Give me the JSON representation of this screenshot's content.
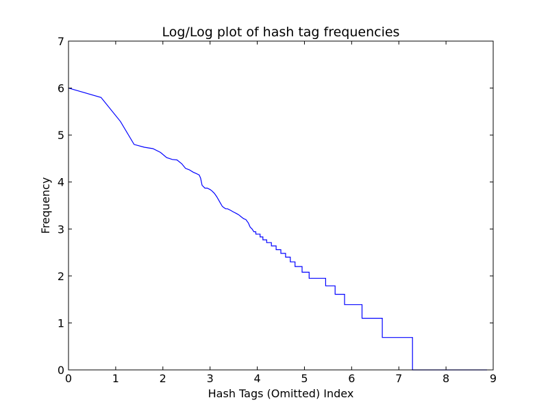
{
  "chart_data": {
    "type": "line",
    "title": "Log/Log plot of hash tag frequencies",
    "xlabel": "Hash Tags (Omitted) Index",
    "ylabel": "Frequency",
    "xlim": [
      0,
      9
    ],
    "ylim": [
      0,
      7
    ],
    "x_ticks": [
      "0",
      "1",
      "2",
      "3",
      "4",
      "5",
      "6",
      "7",
      "8",
      "9"
    ],
    "y_ticks": [
      "0",
      "1",
      "2",
      "3",
      "4",
      "5",
      "6",
      "7"
    ],
    "grid": false,
    "legend": "none",
    "series": [
      {
        "color": "#0000ff",
        "x": [
          0,
          0.69,
          1.1,
          1.39,
          1.61,
          1.79,
          1.95,
          2.08,
          2.2,
          2.3,
          2.4,
          2.48,
          2.56,
          2.64,
          2.71,
          2.77,
          2.8,
          2.83,
          2.89,
          2.94,
          3.0,
          3.04,
          3.09,
          3.14,
          3.18,
          3.22,
          3.26,
          3.3,
          3.33,
          3.37,
          3.43,
          3.5,
          3.56,
          3.61,
          3.66,
          3.71,
          3.76,
          3.81,
          3.85,
          3.89,
          3.93,
          3.97,
          4.0,
          4.06,
          4.12,
          4.2,
          4.3,
          4.4,
          4.5,
          4.6,
          4.7,
          4.8,
          4.95,
          5.1,
          5.2,
          5.45,
          5.65,
          5.85,
          6.22,
          6.65,
          7.29,
          8.87
        ],
        "y": [
          6.0,
          5.8,
          5.29,
          4.8,
          4.74,
          4.71,
          4.63,
          4.52,
          4.48,
          4.47,
          4.39,
          4.29,
          4.26,
          4.21,
          4.18,
          4.15,
          4.08,
          3.93,
          3.87,
          3.87,
          3.84,
          3.81,
          3.76,
          3.69,
          3.62,
          3.55,
          3.48,
          3.45,
          3.43,
          3.43,
          3.4,
          3.36,
          3.33,
          3.3,
          3.26,
          3.22,
          3.2,
          3.13,
          3.04,
          3.0,
          2.94,
          2.89,
          2.89,
          2.83,
          2.77,
          2.71,
          2.64,
          2.56,
          2.48,
          2.4,
          2.3,
          2.2,
          2.08,
          1.95,
          1.95,
          1.79,
          1.61,
          1.39,
          1.1,
          0.69,
          0.0,
          0.0
        ],
        "step_from": 3.93
      }
    ]
  }
}
